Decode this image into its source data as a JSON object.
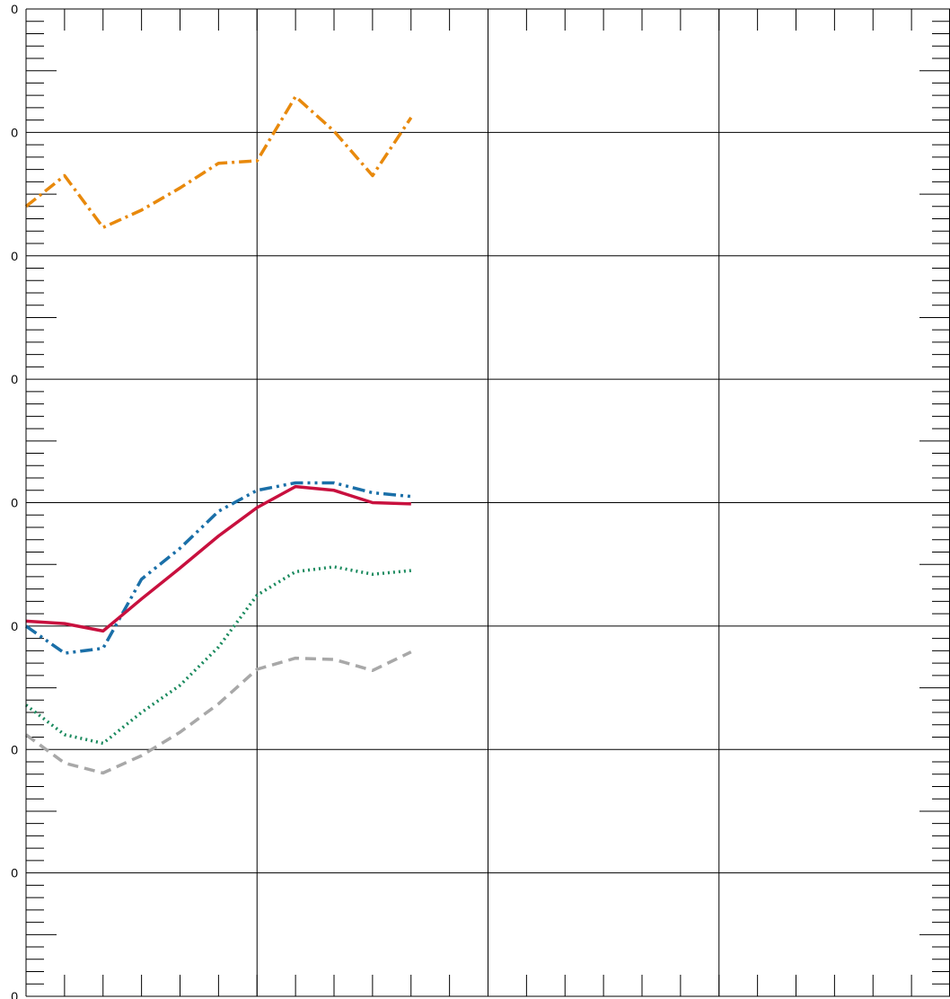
{
  "chart_data": {
    "type": "line",
    "title": "",
    "xlabel": "",
    "ylabel": "",
    "grid": true,
    "legend": "none",
    "xlim": [
      0,
      24
    ],
    "ylim": [
      0,
      8
    ],
    "y_tick_labels": [
      "0",
      "0",
      "0",
      "0",
      "0",
      "0",
      "0",
      "0",
      "0"
    ],
    "x": [
      0,
      1,
      2,
      3,
      4,
      5,
      6,
      7,
      8,
      9,
      10
    ],
    "series": [
      {
        "color": "#e8890c",
        "dash": "dashdot",
        "values": [
          6.4,
          6.65,
          6.23,
          6.37,
          6.55,
          6.75,
          6.77,
          7.29,
          7.01,
          6.65,
          7.12
        ]
      },
      {
        "color": "#1a6fa8",
        "dash": "dashdotdot",
        "values": [
          3.0,
          2.78,
          2.82,
          3.38,
          3.63,
          3.93,
          4.1,
          4.16,
          4.16,
          4.08,
          4.05
        ]
      },
      {
        "color": "#c8103e",
        "dash": "solid",
        "values": [
          3.04,
          3.02,
          2.96,
          3.22,
          3.47,
          3.73,
          3.96,
          4.13,
          4.1,
          4.0,
          3.99
        ]
      },
      {
        "color": "#1a8a5e",
        "dash": "dotted",
        "values": [
          2.36,
          2.12,
          2.05,
          2.3,
          2.52,
          2.83,
          3.25,
          3.44,
          3.48,
          3.42,
          3.45
        ]
      },
      {
        "color": "#a8a8a8",
        "dash": "dashed",
        "values": [
          2.12,
          1.89,
          1.81,
          1.95,
          2.14,
          2.37,
          2.65,
          2.74,
          2.73,
          2.64,
          2.79
        ]
      }
    ]
  }
}
